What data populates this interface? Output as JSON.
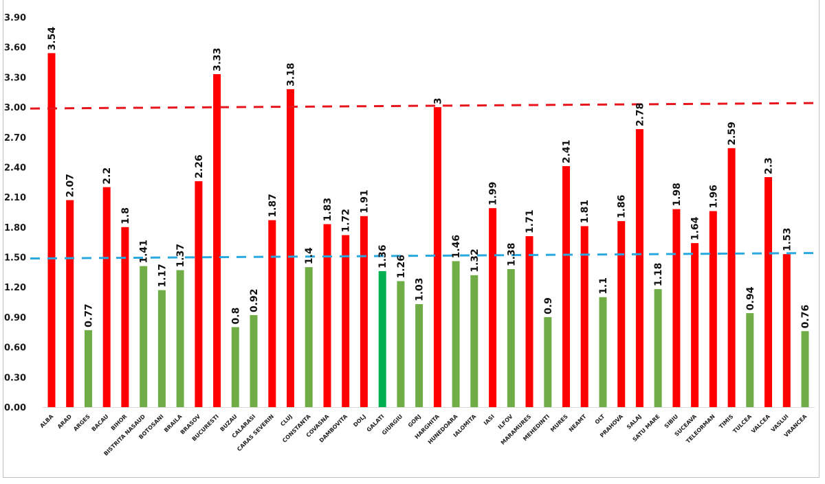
{
  "chart_data": {
    "type": "bar",
    "title": "",
    "xlabel": "",
    "ylabel": "",
    "ylim": [
      0,
      3.9
    ],
    "yticks": [
      "0.00",
      "0.30",
      "0.60",
      "0.90",
      "1.20",
      "1.50",
      "1.80",
      "2.10",
      "2.40",
      "2.70",
      "3.00",
      "3.30",
      "3.60",
      "3.90"
    ],
    "grid": false,
    "legend": "none",
    "categories": [
      "ALBA",
      "ARAD",
      "ARGES",
      "BACAU",
      "BIHOR",
      "BISTRITA NASAUD",
      "BOTOSANI",
      "BRAILA",
      "BRASOV",
      "BUCURESTI",
      "BUZAU",
      "CALARASI",
      "CARAS SEVERIN",
      "CLUJ",
      "CONSTANTA",
      "COVASNA",
      "DAMBOVITA",
      "DOLJ",
      "GALATI",
      "GIURGIU",
      "GORJ",
      "HARGHITA",
      "HUNEDOARA",
      "IALOMITA",
      "IASI",
      "ILFOV",
      "MARAMURES",
      "MEHEDINTI",
      "MURES",
      "NEAMT",
      "OLT",
      "PRAHOVA",
      "SALAJ",
      "SATU MARE",
      "SIBIU",
      "SUCEAVA",
      "TELEORMAN",
      "TIMIS",
      "TULCEA",
      "VALCEA",
      "VASLUI",
      "VRANCEA"
    ],
    "values": [
      3.54,
      2.07,
      0.77,
      2.2,
      1.8,
      1.41,
      1.17,
      1.37,
      2.26,
      3.33,
      0.8,
      0.92,
      1.87,
      3.18,
      1.4,
      1.83,
      1.72,
      1.91,
      1.36,
      1.26,
      1.03,
      3,
      1.46,
      1.32,
      1.99,
      1.38,
      1.71,
      0.9,
      2.41,
      1.81,
      1.1,
      1.86,
      2.78,
      1.18,
      1.98,
      1.64,
      1.96,
      2.59,
      0.94,
      2.3,
      1.53,
      0.76
    ],
    "data_labels": [
      "3.54",
      "2.07",
      "0.77",
      "2.2",
      "1.8",
      "1.41",
      "1.17",
      "1.37",
      "2.26",
      "3.33",
      "0.8",
      "0.92",
      "1.87",
      "3.18",
      "1.4",
      "1.83",
      "1.72",
      "1.91",
      "1.36",
      "1.26",
      "1.03",
      "3",
      "1.46",
      "1.32",
      "1.99",
      "1.38",
      "1.71",
      "0.9",
      "2.41",
      "1.81",
      "1.1",
      "1.86",
      "2.78",
      "1.18",
      "1.98",
      "1.64",
      "1.96",
      "2.59",
      "0.94",
      "2.3",
      "1.53",
      "0.76"
    ],
    "bar_colors": [
      "red",
      "red",
      "green",
      "red",
      "red",
      "green",
      "green",
      "green",
      "red",
      "red",
      "green",
      "green",
      "red",
      "red",
      "green",
      "red",
      "red",
      "red",
      "dark-green",
      "green",
      "green",
      "red",
      "green",
      "green",
      "red",
      "green",
      "red",
      "green",
      "red",
      "red",
      "green",
      "red",
      "red",
      "green",
      "red",
      "red",
      "red",
      "red",
      "green",
      "red",
      "red",
      "green"
    ],
    "reference_lines": [
      {
        "name": "upper-threshold",
        "value": 3.0,
        "style": "dashed",
        "color": "#e8141b"
      },
      {
        "name": "lower-threshold",
        "value": 1.5,
        "style": "dashed",
        "color": "#29a8df"
      }
    ]
  },
  "colors": {
    "red": "#ff0000",
    "green": "#70ad47",
    "dark-green": "#00b050",
    "axis": "#d9d9d9"
  }
}
